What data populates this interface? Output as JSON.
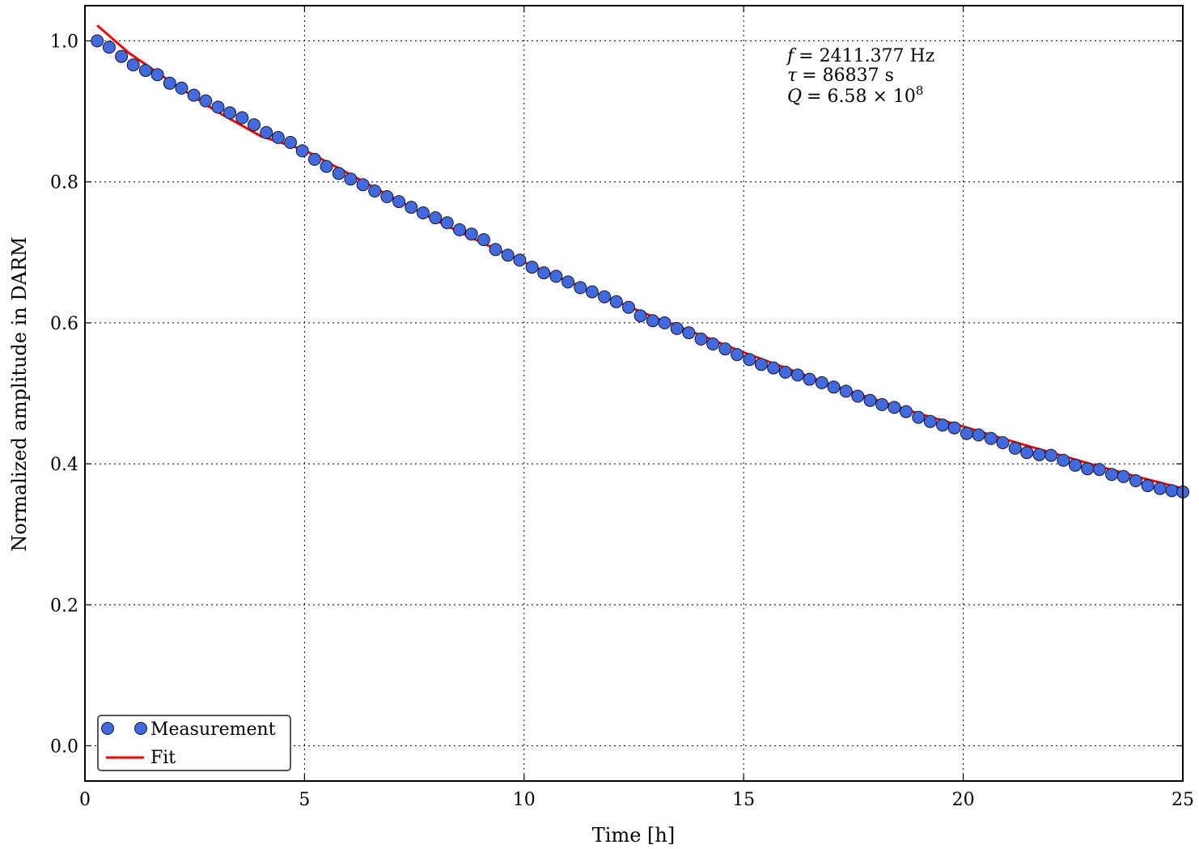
{
  "chart_data": {
    "type": "scatter",
    "title": "",
    "xlabel": "Time [h]",
    "ylabel": "Normalized amplitude in DARM",
    "xlim": [
      0,
      25
    ],
    "ylim": [
      -0.05,
      1.05
    ],
    "xticks": [
      0,
      5,
      10,
      15,
      20,
      25
    ],
    "xtick_labels": [
      "0",
      "5",
      "10",
      "15",
      "20",
      "25"
    ],
    "yticks": [
      0.0,
      0.2,
      0.4,
      0.6,
      0.8,
      1.0
    ],
    "ytick_labels": [
      "0.0",
      "0.2",
      "0.4",
      "0.6",
      "0.8",
      "1.0"
    ],
    "grid": true,
    "legend": {
      "placement": "lower-left",
      "entries": [
        {
          "label": "Measurement",
          "marker": "circle",
          "color": "#4169e1"
        },
        {
          "label": "Fit",
          "marker": "line",
          "color": "#ff0000"
        }
      ]
    },
    "annotation": {
      "f_symbol": "f",
      "f_text": "= 2411.377 Hz",
      "tau_symbol": "τ",
      "tau_text": "= 86837 s",
      "q_symbol": "Q",
      "q_text": "= 6.58 × 10",
      "q_exp": "8"
    },
    "series": [
      {
        "name": "Measurement",
        "kind": "scatter",
        "color": "#4169e1",
        "x": [
          0.28,
          0.55,
          0.83,
          1.1,
          1.38,
          1.65,
          1.93,
          2.2,
          2.48,
          2.75,
          3.03,
          3.3,
          3.58,
          3.85,
          4.13,
          4.4,
          4.68,
          4.95,
          5.23,
          5.5,
          5.78,
          6.05,
          6.33,
          6.6,
          6.88,
          7.15,
          7.43,
          7.7,
          7.98,
          8.25,
          8.53,
          8.8,
          9.08,
          9.35,
          9.63,
          9.9,
          10.18,
          10.45,
          10.73,
          11.0,
          11.28,
          11.55,
          11.83,
          12.1,
          12.38,
          12.65,
          12.93,
          13.2,
          13.48,
          13.75,
          14.03,
          14.3,
          14.58,
          14.85,
          15.13,
          15.4,
          15.68,
          15.95,
          16.23,
          16.5,
          16.78,
          17.05,
          17.33,
          17.6,
          17.88,
          18.15,
          18.43,
          18.7,
          18.98,
          19.25,
          19.53,
          19.8,
          20.08,
          20.35,
          20.63,
          20.9,
          21.18,
          21.45,
          21.73,
          22.0,
          22.28,
          22.55,
          22.83,
          23.1,
          23.38,
          23.65,
          23.93,
          24.2,
          24.48,
          24.75,
          25.0
        ],
        "y": [
          1.0,
          0.991,
          0.978,
          0.966,
          0.958,
          0.952,
          0.94,
          0.933,
          0.923,
          0.915,
          0.906,
          0.898,
          0.891,
          0.881,
          0.87,
          0.863,
          0.856,
          0.844,
          0.832,
          0.822,
          0.812,
          0.804,
          0.796,
          0.787,
          0.779,
          0.772,
          0.764,
          0.756,
          0.749,
          0.742,
          0.732,
          0.726,
          0.718,
          0.704,
          0.696,
          0.689,
          0.679,
          0.671,
          0.666,
          0.658,
          0.65,
          0.644,
          0.637,
          0.63,
          0.622,
          0.61,
          0.603,
          0.6,
          0.592,
          0.586,
          0.577,
          0.57,
          0.563,
          0.555,
          0.548,
          0.541,
          0.536,
          0.53,
          0.526,
          0.52,
          0.515,
          0.509,
          0.503,
          0.496,
          0.49,
          0.484,
          0.48,
          0.474,
          0.466,
          0.46,
          0.455,
          0.451,
          0.443,
          0.441,
          0.436,
          0.43,
          0.422,
          0.416,
          0.413,
          0.412,
          0.405,
          0.398,
          0.393,
          0.392,
          0.385,
          0.382,
          0.376,
          0.369,
          0.365,
          0.362,
          0.36
        ]
      },
      {
        "name": "Fit",
        "kind": "line",
        "color": "#ff0000",
        "x": [
          0.28,
          1.0,
          2.0,
          3.0,
          4.0,
          5.0,
          6.0,
          7.0,
          8.0,
          9.0,
          10.0,
          11.0,
          12.0,
          13.0,
          14.0,
          15.0,
          16.0,
          17.0,
          18.0,
          19.0,
          20.0,
          21.0,
          22.0,
          23.0,
          24.0,
          25.0
        ],
        "y": [
          1.022,
          0.983,
          0.94,
          0.9,
          0.865,
          0.845,
          0.812,
          0.778,
          0.745,
          0.715,
          0.686,
          0.659,
          0.633,
          0.607,
          0.583,
          0.558,
          0.535,
          0.512,
          0.491,
          0.471,
          0.453,
          0.434,
          0.416,
          0.398,
          0.381,
          0.365
        ]
      }
    ]
  }
}
